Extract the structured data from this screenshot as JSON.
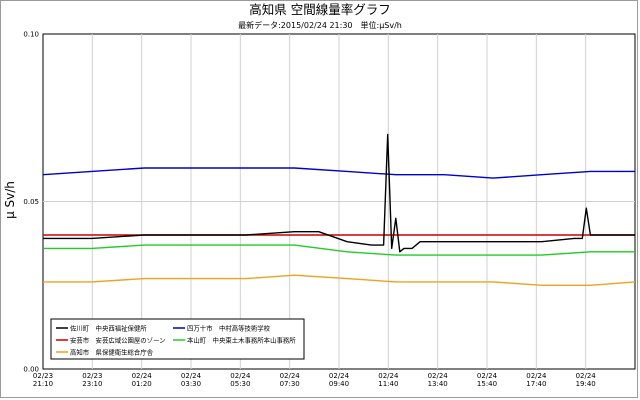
{
  "chart_data": {
    "type": "line",
    "title": "高知県 空間線量率グラフ",
    "subtitle": "最新データ:2015/02/24 21:30　単位:μSv/h",
    "ylabel": "μ Sv/h",
    "xlabel": "",
    "ylim": [
      0.0,
      0.1
    ],
    "yticks": [
      "0.00",
      "0.05",
      "0.10"
    ],
    "xticks": [
      {
        "date": "02/23",
        "time": "21:10"
      },
      {
        "date": "02/23",
        "time": "23:10"
      },
      {
        "date": "02/24",
        "time": "01:20"
      },
      {
        "date": "02/24",
        "time": "03:30"
      },
      {
        "date": "02/24",
        "time": "05:30"
      },
      {
        "date": "02/24",
        "time": "07:30"
      },
      {
        "date": "02/24",
        "time": "09:40"
      },
      {
        "date": "02/24",
        "time": "11:40"
      },
      {
        "date": "02/24",
        "time": "13:40"
      },
      {
        "date": "02/24",
        "time": "15:40"
      },
      {
        "date": "02/24",
        "time": "17:40"
      },
      {
        "date": "02/24",
        "time": "19:40"
      }
    ],
    "grid": true,
    "legend_position": "bottom-left",
    "series": [
      {
        "name": "佐川町　中央西福祉保健所",
        "color": "#000000",
        "x": [
          "2015-02-23 21:10",
          "2015-02-23 23:10",
          "2015-02-24 01:20",
          "2015-02-24 03:30",
          "2015-02-24 05:30",
          "2015-02-24 07:30",
          "2015-02-24 08:30",
          "2015-02-24 09:40",
          "2015-02-24 10:40",
          "2015-02-24 11:10",
          "2015-02-24 11:20",
          "2015-02-24 11:30",
          "2015-02-24 11:40",
          "2015-02-24 11:50",
          "2015-02-24 12:00",
          "2015-02-24 12:20",
          "2015-02-24 12:40",
          "2015-02-24 13:40",
          "2015-02-24 15:40",
          "2015-02-24 17:40",
          "2015-02-24 19:00",
          "2015-02-24 19:20",
          "2015-02-24 19:30",
          "2015-02-24 19:40",
          "2015-02-24 20:40",
          "2015-02-24 21:30"
        ],
        "values": [
          0.039,
          0.039,
          0.04,
          0.04,
          0.04,
          0.041,
          0.041,
          0.038,
          0.037,
          0.037,
          0.07,
          0.036,
          0.045,
          0.035,
          0.036,
          0.036,
          0.038,
          0.038,
          0.038,
          0.038,
          0.039,
          0.039,
          0.048,
          0.04,
          0.04,
          0.04
        ]
      },
      {
        "name": "安芸市　安芸広域公園屋のゾーン",
        "color": "#cc0000",
        "x": [
          "2015-02-23 21:10",
          "2015-02-24 21:30"
        ],
        "values": [
          0.04,
          0.04
        ]
      },
      {
        "name": "高知市　県保健衛生総合庁舎",
        "color": "#f0a020",
        "x": [
          "2015-02-23 21:10",
          "2015-02-23 23:10",
          "2015-02-24 01:20",
          "2015-02-24 03:30",
          "2015-02-24 05:30",
          "2015-02-24 07:30",
          "2015-02-24 09:40",
          "2015-02-24 11:40",
          "2015-02-24 13:40",
          "2015-02-24 15:40",
          "2015-02-24 17:40",
          "2015-02-24 19:40",
          "2015-02-24 21:30"
        ],
        "values": [
          0.026,
          0.026,
          0.027,
          0.027,
          0.027,
          0.028,
          0.027,
          0.026,
          0.026,
          0.026,
          0.025,
          0.025,
          0.026
        ]
      },
      {
        "name": "四万十市　中村高等技術学校",
        "color": "#0000cc",
        "x": [
          "2015-02-23 21:10",
          "2015-02-23 23:10",
          "2015-02-24 01:20",
          "2015-02-24 03:30",
          "2015-02-24 05:30",
          "2015-02-24 07:30",
          "2015-02-24 09:40",
          "2015-02-24 11:40",
          "2015-02-24 13:40",
          "2015-02-24 15:40",
          "2015-02-24 17:40",
          "2015-02-24 19:40",
          "2015-02-24 21:30"
        ],
        "values": [
          0.058,
          0.059,
          0.06,
          0.06,
          0.06,
          0.06,
          0.059,
          0.058,
          0.058,
          0.057,
          0.058,
          0.059,
          0.059
        ]
      },
      {
        "name": "本山町　中央東土木事務所本山事務所",
        "color": "#22cc22",
        "x": [
          "2015-02-23 21:10",
          "2015-02-23 23:10",
          "2015-02-24 01:20",
          "2015-02-24 03:30",
          "2015-02-24 05:30",
          "2015-02-24 07:30",
          "2015-02-24 09:40",
          "2015-02-24 11:40",
          "2015-02-24 13:40",
          "2015-02-24 15:40",
          "2015-02-24 17:40",
          "2015-02-24 19:40",
          "2015-02-24 21:30"
        ],
        "values": [
          0.036,
          0.036,
          0.037,
          0.037,
          0.037,
          0.037,
          0.035,
          0.034,
          0.034,
          0.034,
          0.034,
          0.035,
          0.035
        ]
      }
    ]
  }
}
